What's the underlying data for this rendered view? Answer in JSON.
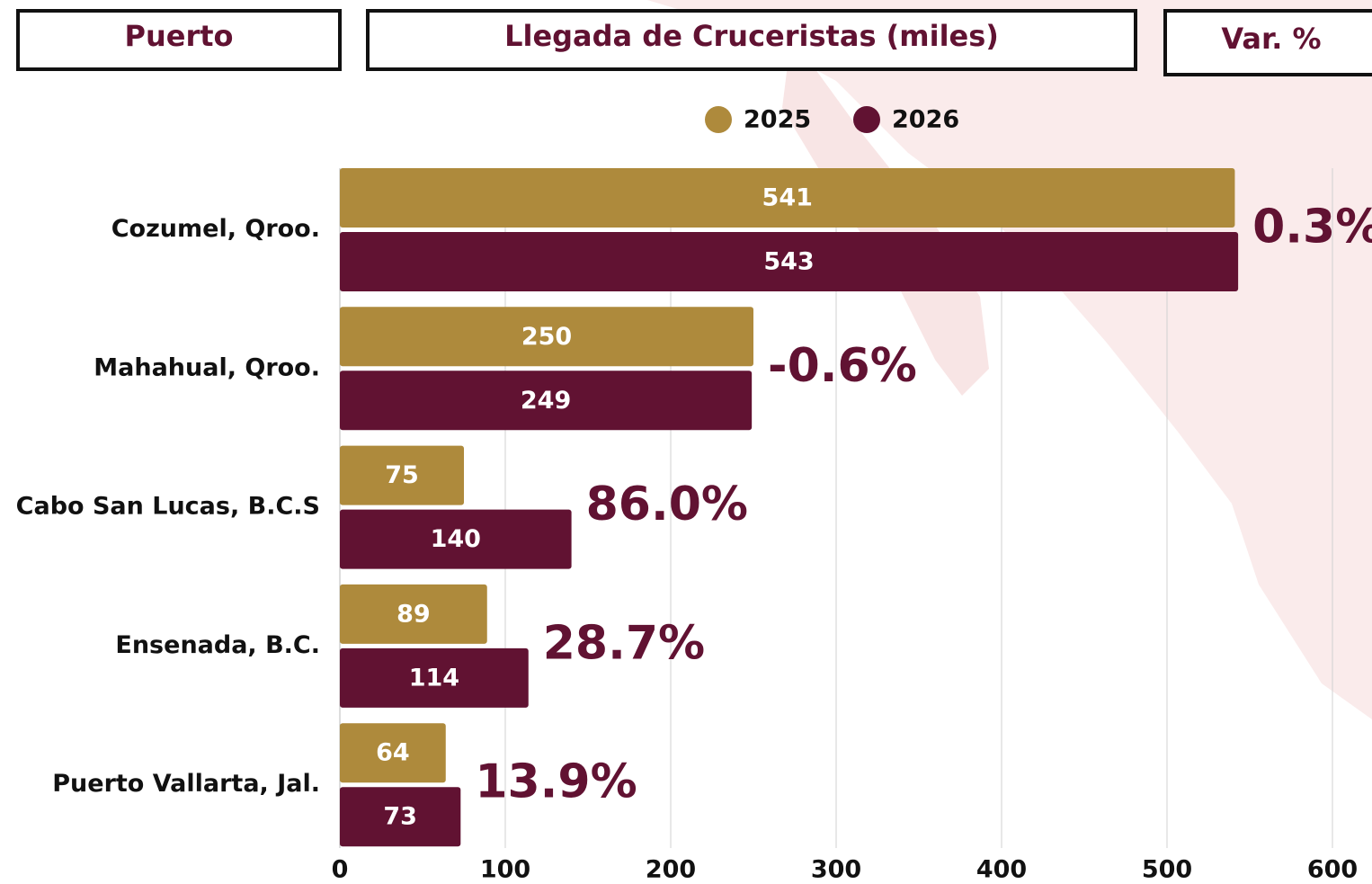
{
  "header": {
    "port": "Puerto",
    "var": "Var. %"
  },
  "chart_data": {
    "type": "bar",
    "orientation": "horizontal",
    "title": "Llegada de Cruceristas (miles)",
    "categories": [
      "Cozumel, Qroo.",
      "Mahahual, Qroo.",
      "Cabo San Lucas, B.C.S",
      "Ensenada, B.C.",
      "Puerto Vallarta, Jal."
    ],
    "series": [
      {
        "name": "2025",
        "color": "#ae8a3c",
        "values": [
          541,
          250,
          75,
          89,
          64
        ]
      },
      {
        "name": "2026",
        "color": "#611232",
        "values": [
          543,
          249,
          140,
          114,
          73
        ]
      }
    ],
    "annotations": [
      "0.3%",
      "-0.6%",
      "86.0%",
      "28.7%",
      "13.9%"
    ],
    "annotation_color": "#611232",
    "xlim": [
      0,
      600
    ],
    "xticks": [
      0,
      100,
      200,
      300,
      400,
      500,
      600
    ],
    "grid": true
  }
}
